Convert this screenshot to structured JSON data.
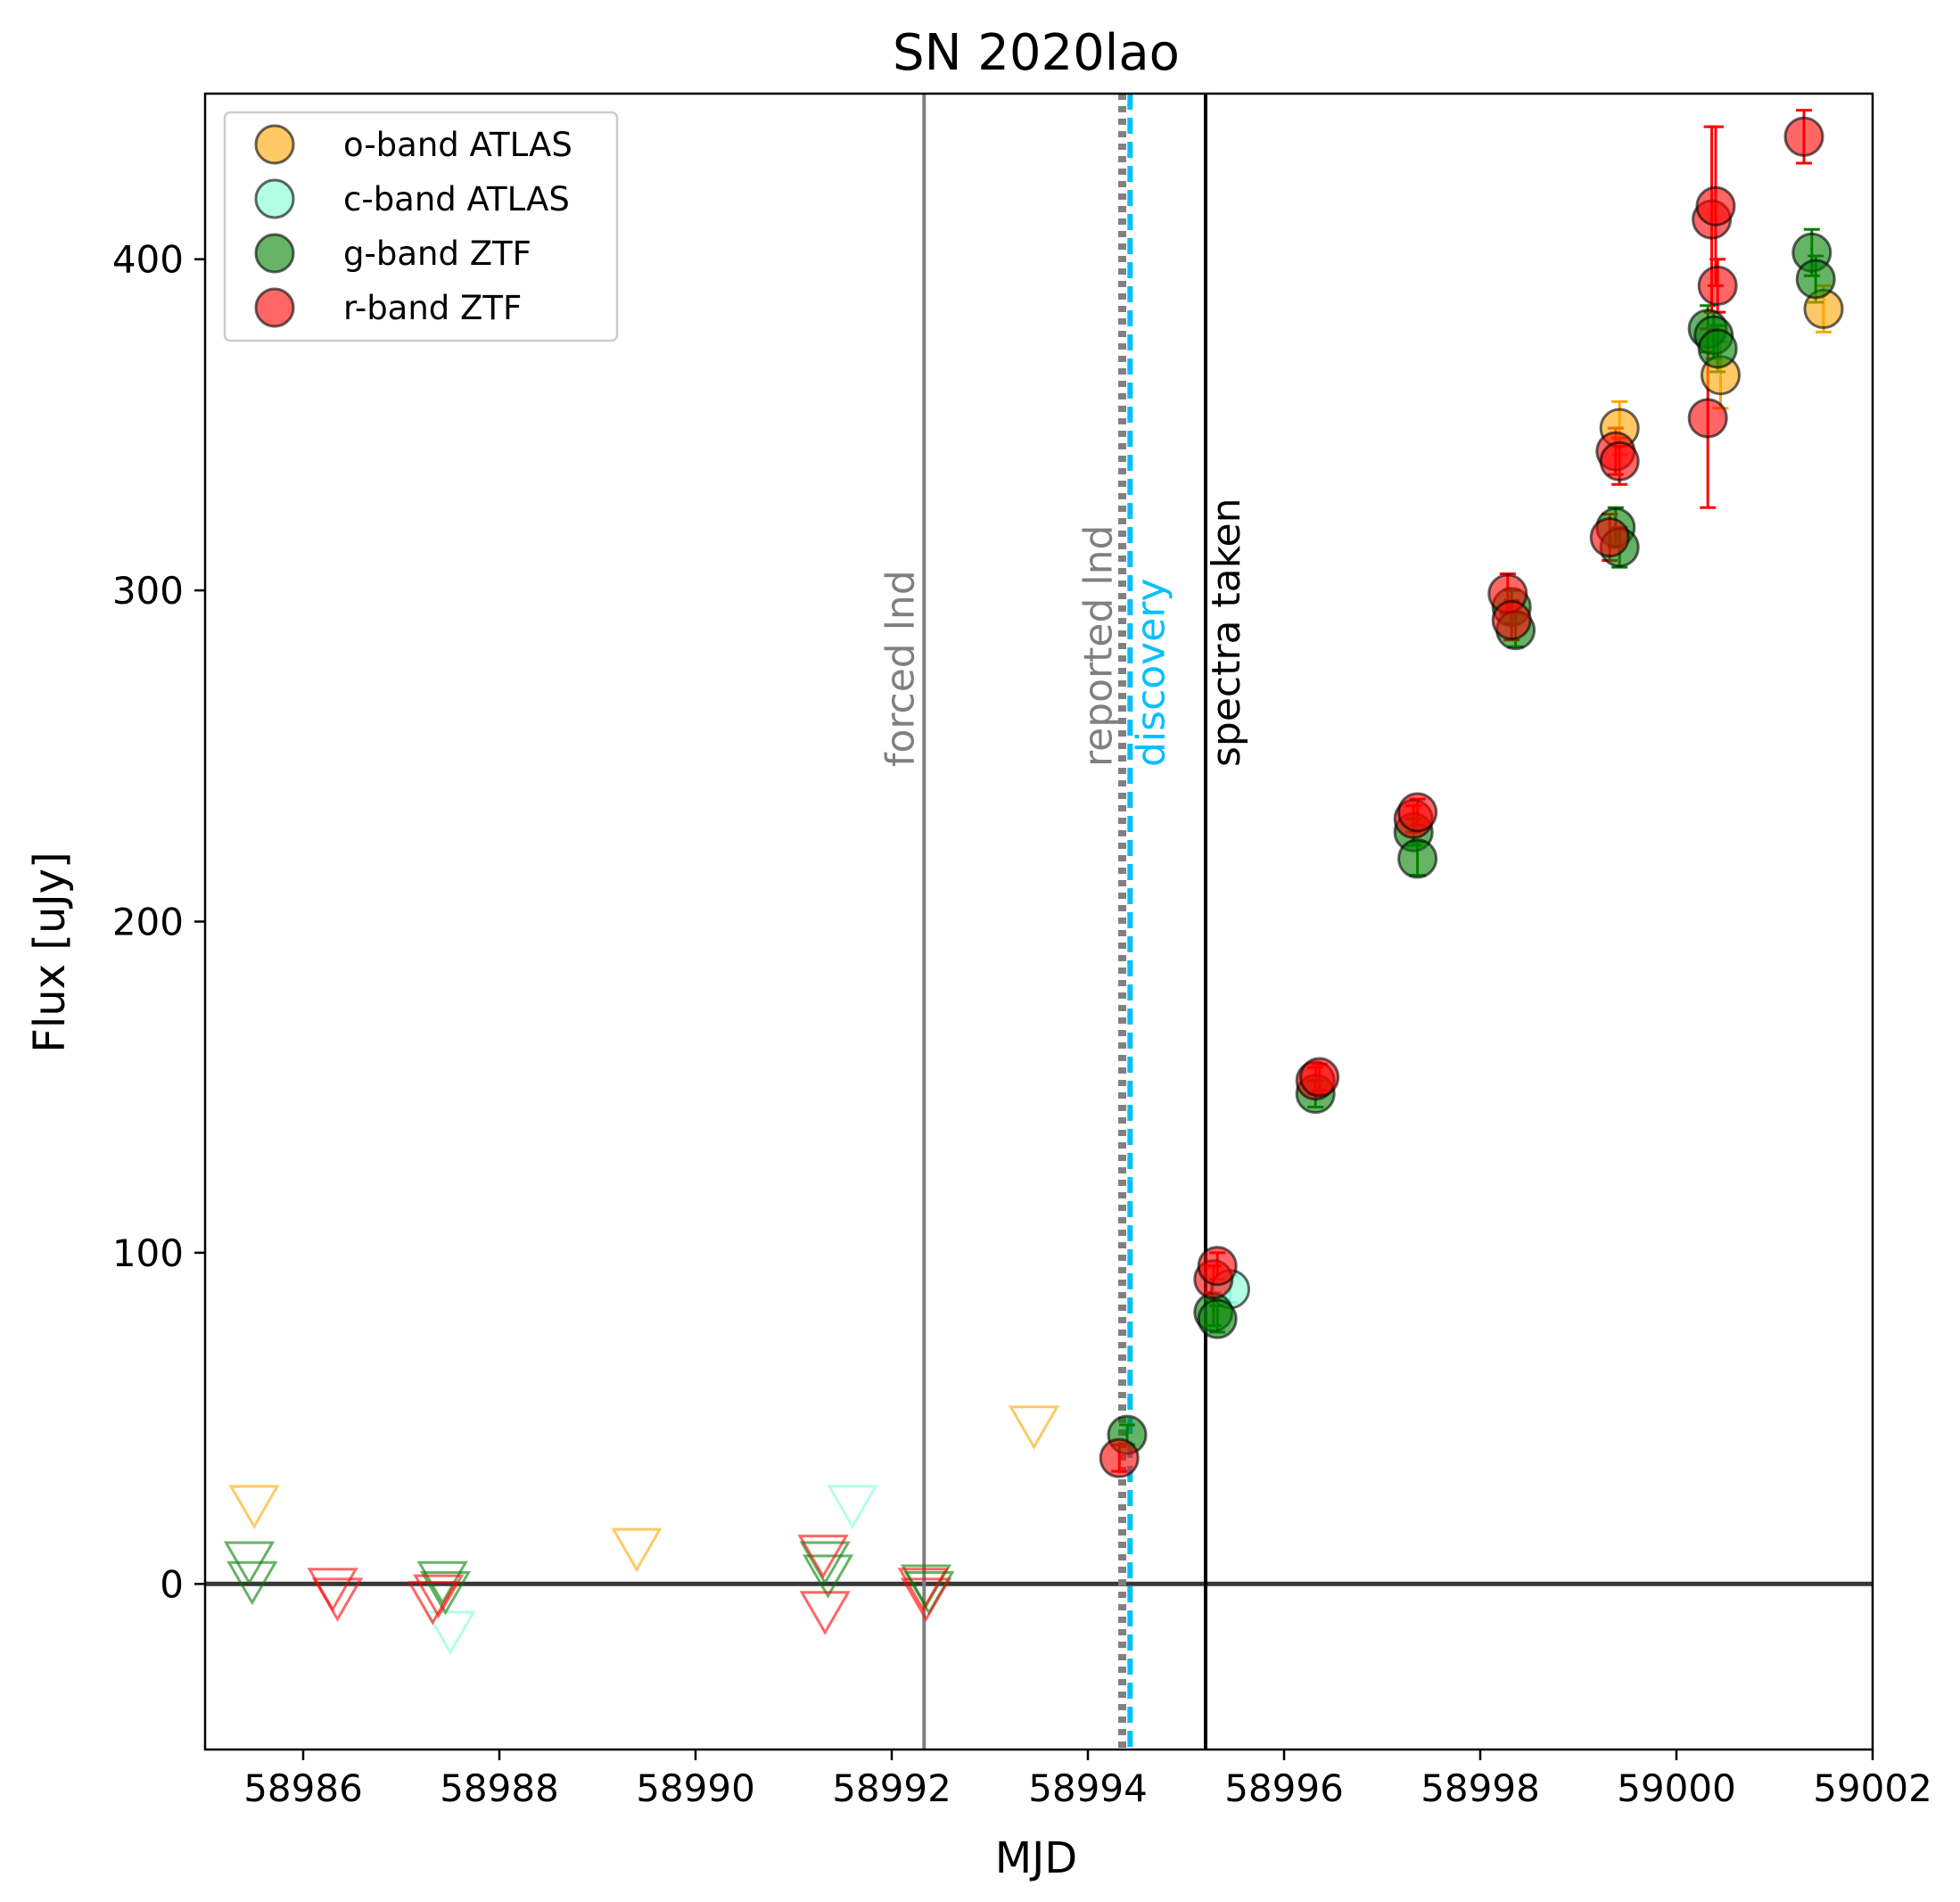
{
  "chart_data": {
    "type": "scatter",
    "title": "SN 2020lao",
    "xlabel": "MJD",
    "ylabel": "Flux [uJy]",
    "xlim": [
      58985,
      59002
    ],
    "ylim": [
      -50,
      450
    ],
    "xticks": [
      58986,
      58988,
      58990,
      58992,
      58994,
      58996,
      58998,
      59000,
      59002
    ],
    "yticks": [
      0,
      100,
      200,
      300,
      400
    ],
    "grid": false,
    "legend_position": "top-left",
    "zero_line": 0,
    "series": [
      {
        "name": "o-band ATLAS",
        "color": "#FFA500",
        "detections": [
          {
            "x": 58999.42,
            "y": 349,
            "err": 8
          },
          {
            "x": 59000.45,
            "y": 365,
            "err": 10
          },
          {
            "x": 59001.5,
            "y": 385,
            "err": 7
          }
        ],
        "upper_limits": [
          {
            "x": 58985.5,
            "y": 24
          },
          {
            "x": 58989.4,
            "y": 11
          },
          {
            "x": 58993.45,
            "y": 48
          }
        ]
      },
      {
        "name": "c-band ATLAS",
        "color": "#7FFFD4",
        "detections": [
          {
            "x": 58995.45,
            "y": 89,
            "err": 4
          }
        ],
        "upper_limits": [
          {
            "x": 58987.5,
            "y": -14
          },
          {
            "x": 58991.6,
            "y": 24
          }
        ]
      },
      {
        "name": "g-band ZTF",
        "color": "#008000",
        "detections": [
          {
            "x": 58994.4,
            "y": 45,
            "err": 3
          },
          {
            "x": 58995.28,
            "y": 82,
            "err": 4
          },
          {
            "x": 58995.32,
            "y": 80,
            "err": 4
          },
          {
            "x": 58996.32,
            "y": 148,
            "err": 4
          },
          {
            "x": 58997.32,
            "y": 227,
            "err": 4
          },
          {
            "x": 58997.36,
            "y": 219,
            "err": 5
          },
          {
            "x": 58998.32,
            "y": 295,
            "err": 5
          },
          {
            "x": 58998.36,
            "y": 288,
            "err": 5
          },
          {
            "x": 58999.38,
            "y": 319,
            "err": 6
          },
          {
            "x": 58999.42,
            "y": 313,
            "err": 6
          },
          {
            "x": 59000.32,
            "y": 379,
            "err": 7
          },
          {
            "x": 59000.38,
            "y": 377,
            "err": 7
          },
          {
            "x": 59000.42,
            "y": 373,
            "err": 7
          },
          {
            "x": 59001.38,
            "y": 402,
            "err": 7
          },
          {
            "x": 59001.42,
            "y": 394,
            "err": 7
          }
        ],
        "upper_limits": [
          {
            "x": 58985.45,
            "y": 7
          },
          {
            "x": 58985.48,
            "y": 1
          },
          {
            "x": 58987.42,
            "y": 1
          },
          {
            "x": 58987.45,
            "y": -2
          },
          {
            "x": 58991.32,
            "y": 7
          },
          {
            "x": 58991.35,
            "y": 3
          },
          {
            "x": 58992.35,
            "y": 0
          },
          {
            "x": 58992.38,
            "y": -2
          }
        ]
      },
      {
        "name": "r-band ZTF",
        "color": "#FF0000",
        "detections": [
          {
            "x": 58994.32,
            "y": 38,
            "err": 4
          },
          {
            "x": 58995.28,
            "y": 92,
            "err": 4
          },
          {
            "x": 58995.32,
            "y": 96,
            "err": 4
          },
          {
            "x": 58996.32,
            "y": 152,
            "err": 4
          },
          {
            "x": 58996.36,
            "y": 153,
            "err": 4
          },
          {
            "x": 58997.32,
            "y": 231,
            "err": 4
          },
          {
            "x": 58997.36,
            "y": 233,
            "err": 4
          },
          {
            "x": 58998.28,
            "y": 299,
            "err": 6
          },
          {
            "x": 58998.32,
            "y": 291,
            "err": 6
          },
          {
            "x": 58999.32,
            "y": 316,
            "err": 7
          },
          {
            "x": 58999.38,
            "y": 342,
            "err": 7
          },
          {
            "x": 58999.42,
            "y": 339,
            "err": 7
          },
          {
            "x": 59000.32,
            "y": 352,
            "err": 27
          },
          {
            "x": 59000.36,
            "y": 412,
            "err": 28
          },
          {
            "x": 59000.4,
            "y": 416,
            "err": 24
          },
          {
            "x": 59000.42,
            "y": 392,
            "err": 8
          },
          {
            "x": 59001.3,
            "y": 437,
            "err": 8
          }
        ],
        "upper_limits": [
          {
            "x": 58986.3,
            "y": -1
          },
          {
            "x": 58986.35,
            "y": -4
          },
          {
            "x": 58987.32,
            "y": -5
          },
          {
            "x": 58987.38,
            "y": -3
          },
          {
            "x": 58991.3,
            "y": 9
          },
          {
            "x": 58991.32,
            "y": -8
          },
          {
            "x": 58992.32,
            "y": -1
          },
          {
            "x": 58992.35,
            "y": -4
          }
        ]
      }
    ],
    "vertical_lines": [
      {
        "x": 58992.33,
        "label": "forced lnd",
        "color": "#808080",
        "style": "solid"
      },
      {
        "x": 58994.35,
        "label": "reported lnd",
        "color": "#808080",
        "style": "dotted"
      },
      {
        "x": 58994.43,
        "label": "discovery",
        "color": "#00BFFF",
        "style": "dashed"
      },
      {
        "x": 58995.2,
        "label": "spectra taken",
        "color": "#000000",
        "style": "solid"
      }
    ]
  }
}
